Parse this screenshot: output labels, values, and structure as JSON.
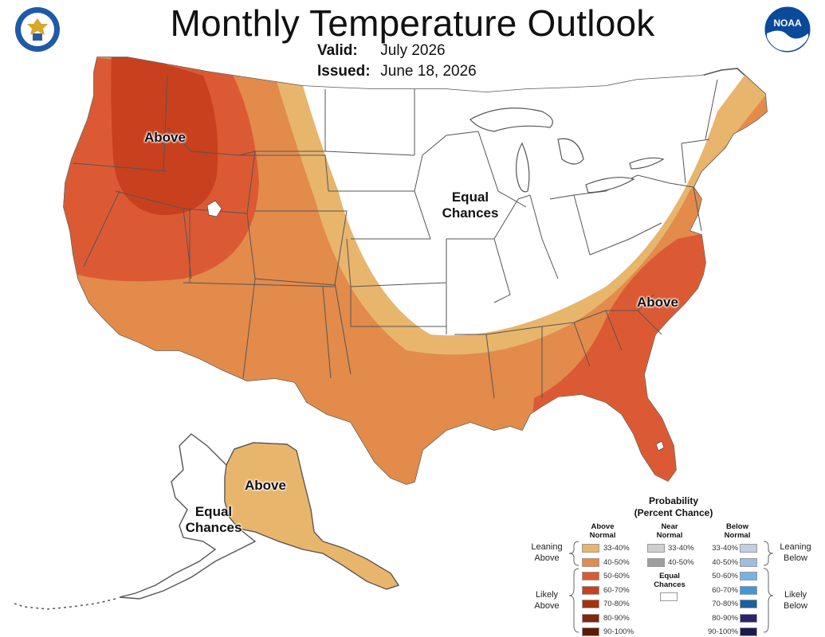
{
  "header": {
    "title": "Monthly Temperature Outlook",
    "valid_label": "Valid:",
    "valid_value": "July 2026",
    "issued_label": "Issued:",
    "issued_value": "June 18, 2026"
  },
  "logos": {
    "left": "department-of-commerce-seal",
    "right_text": "NOAA"
  },
  "map_labels": {
    "west": "Above",
    "central": "Equal\nChances",
    "southeast": "Above",
    "alaska_above": "Above",
    "alaska_ec": "Equal\nChances"
  },
  "legend": {
    "title": "Probability\n(Percent Chance)",
    "above_head": "Above\nNormal",
    "near_head": "Near\nNormal",
    "below_head": "Below\nNormal",
    "leaning_above": "Leaning\nAbove",
    "likely_above": "Likely\nAbove",
    "leaning_below": "Leaning\nBelow",
    "likely_below": "Likely\nBelow",
    "equal_chances": "Equal\nChances",
    "above": [
      {
        "range": "33-40%",
        "color": "#e8b56c"
      },
      {
        "range": "40-50%",
        "color": "#e28b4b"
      },
      {
        "range": "50-60%",
        "color": "#db5a34"
      },
      {
        "range": "60-70%",
        "color": "#c9401e"
      },
      {
        "range": "70-80%",
        "color": "#a8300e"
      },
      {
        "range": "80-90%",
        "color": "#85250c"
      },
      {
        "range": "90-100%",
        "color": "#5e1a08"
      }
    ],
    "near": [
      {
        "range": "33-40%",
        "color": "#cfcfcf"
      },
      {
        "range": "40-50%",
        "color": "#9e9e9e"
      }
    ],
    "below": [
      {
        "range": "33-40%",
        "color": "#c2cde6"
      },
      {
        "range": "40-50%",
        "color": "#9fbde0"
      },
      {
        "range": "50-60%",
        "color": "#76b3e2"
      },
      {
        "range": "60-70%",
        "color": "#3f9ad6"
      },
      {
        "range": "70-80%",
        "color": "#1a5f9e"
      },
      {
        "range": "80-90%",
        "color": "#2a2470"
      },
      {
        "range": "90-100%",
        "color": "#1e1a4e"
      }
    ],
    "ec_color": "#ffffff"
  }
}
